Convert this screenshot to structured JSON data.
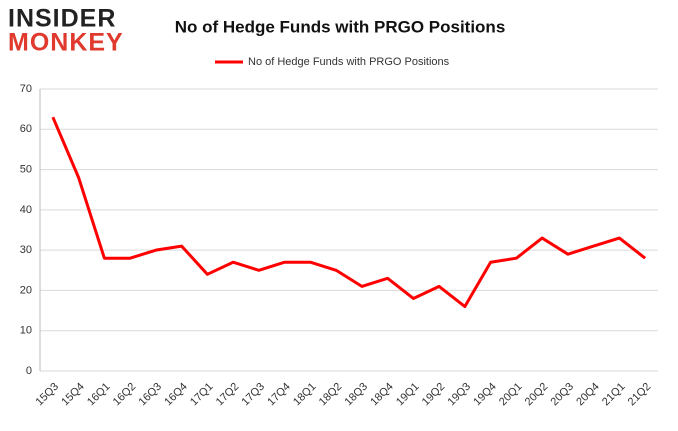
{
  "logo": {
    "line1": "INSIDER",
    "line2": "MONKEY"
  },
  "chart_data": {
    "type": "line",
    "title": "No of Hedge Funds with PRGO Positions",
    "categories": [
      "15Q3",
      "15Q4",
      "16Q1",
      "16Q2",
      "16Q3",
      "16Q4",
      "17Q1",
      "17Q2",
      "17Q3",
      "17Q4",
      "18Q1",
      "18Q2",
      "18Q3",
      "18Q4",
      "19Q1",
      "19Q2",
      "19Q3",
      "19Q4",
      "20Q1",
      "20Q2",
      "20Q3",
      "20Q4",
      "21Q1",
      "21Q2"
    ],
    "series": [
      {
        "name": "No of Hedge Funds with PRGO Positions",
        "color": "#ff0000",
        "values": [
          63,
          48,
          28,
          28,
          30,
          31,
          24,
          27,
          25,
          27,
          27,
          25,
          21,
          23,
          18,
          21,
          16,
          27,
          28,
          33,
          29,
          31,
          33,
          28
        ]
      }
    ],
    "ylim": [
      0,
      70
    ],
    "yticks": [
      0,
      10,
      20,
      30,
      40,
      50,
      60,
      70
    ],
    "grid": true,
    "legend": "top"
  }
}
